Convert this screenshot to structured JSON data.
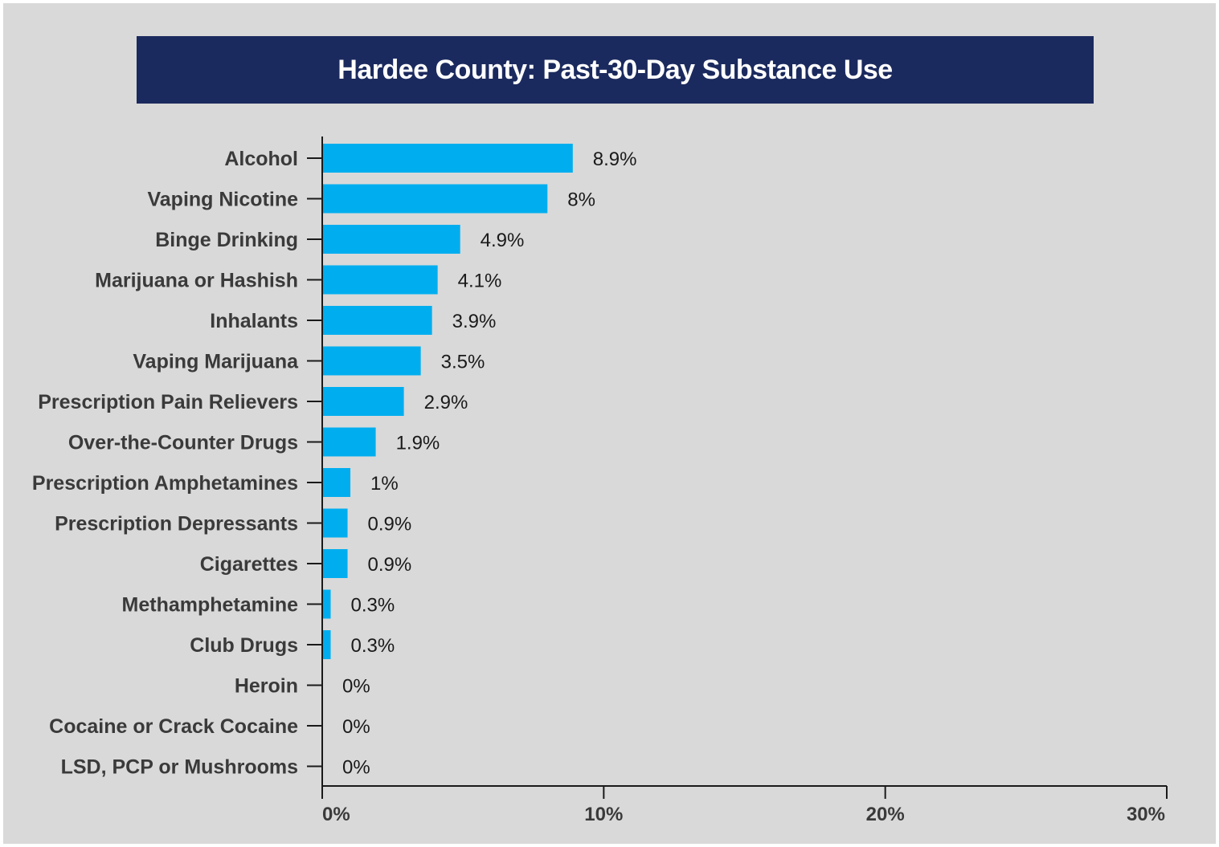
{
  "chart_data": {
    "type": "bar",
    "orientation": "horizontal",
    "title": "Hardee County: Past-30-Day Substance Use",
    "categories": [
      "Alcohol",
      "Vaping Nicotine",
      "Binge Drinking",
      "Marijuana or Hashish",
      "Inhalants",
      "Vaping Marijuana",
      "Prescription Pain Relievers",
      "Over-the-Counter Drugs",
      "Prescription Amphetamines",
      "Prescription Depressants",
      "Cigarettes",
      "Methamphetamine",
      "Club Drugs",
      "Heroin",
      "Cocaine or Crack Cocaine",
      "LSD, PCP or Mushrooms"
    ],
    "values": [
      8.9,
      8,
      4.9,
      4.1,
      3.9,
      3.5,
      2.9,
      1.9,
      1,
      0.9,
      0.9,
      0.3,
      0.3,
      0,
      0,
      0
    ],
    "data_labels": [
      "8.9%",
      "8%",
      "4.9%",
      "4.1%",
      "3.9%",
      "3.5%",
      "2.9%",
      "1.9%",
      "1%",
      "0.9%",
      "0.9%",
      "0.3%",
      "0.3%",
      "0%",
      "0%",
      "0%"
    ],
    "xlim": [
      0,
      30
    ],
    "x_ticks": [
      0,
      10,
      20,
      30
    ],
    "x_tick_labels": [
      "0%",
      "10%",
      "20%",
      "30%"
    ],
    "xlabel": "",
    "ylabel": "",
    "grid": false,
    "legend": "none",
    "colors": {
      "bar": "#00aeef",
      "title_background": "#1b2a5e",
      "title_text": "#ffffff",
      "background": "#d9d9d9",
      "axis": "#1a1a1a"
    }
  }
}
